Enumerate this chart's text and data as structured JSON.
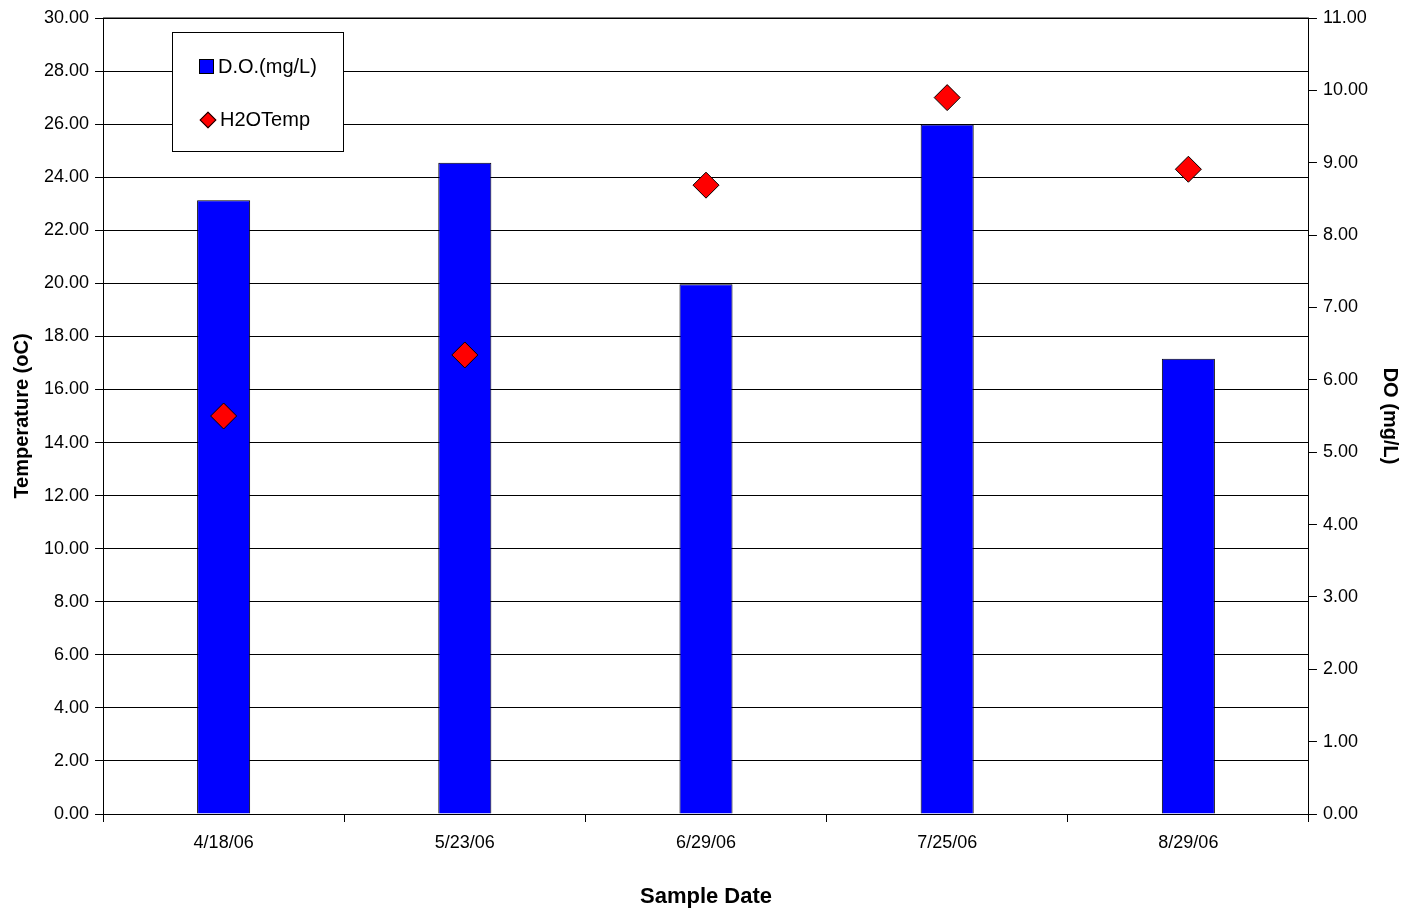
{
  "chart_data": {
    "type": "bar",
    "xlabel": "Sample Date",
    "ylabel": "Temperature (oC)",
    "y2label": "DO (mg/L)",
    "categories": [
      "4/18/06",
      "5/23/06",
      "6/29/06",
      "7/25/06",
      "8/29/06"
    ],
    "series": [
      {
        "name": "D.O.(mg/L)",
        "axis": "y2",
        "color": "#0000ff",
        "values": [
          8.48,
          9.0,
          7.32,
          9.53,
          6.29
        ]
      },
      {
        "name": "H2OTemp",
        "type": "scatter",
        "color": "#ff0000",
        "marker": "diamond",
        "values": [
          15.0,
          17.3,
          23.7,
          27.0,
          24.3
        ]
      }
    ],
    "ylim": [
      0,
      30
    ],
    "yticks": [
      {
        "value": 0,
        "label": "0.00"
      },
      {
        "value": 2,
        "label": "2.00"
      },
      {
        "value": 4,
        "label": "4.00"
      },
      {
        "value": 6,
        "label": "6.00"
      },
      {
        "value": 8,
        "label": "8.00"
      },
      {
        "value": 10,
        "label": "10.00"
      },
      {
        "value": 12,
        "label": "12.00"
      },
      {
        "value": 14,
        "label": "14.00"
      },
      {
        "value": 16,
        "label": "16.00"
      },
      {
        "value": 18,
        "label": "18.00"
      },
      {
        "value": 20,
        "label": "20.00"
      },
      {
        "value": 22,
        "label": "22.00"
      },
      {
        "value": 24,
        "label": "24.00"
      },
      {
        "value": 26,
        "label": "26.00"
      },
      {
        "value": 28,
        "label": "28.00"
      },
      {
        "value": 30,
        "label": "30.00"
      }
    ],
    "y2lim": [
      0,
      11
    ],
    "y2ticks": [
      {
        "value": 0,
        "label": "0.00"
      },
      {
        "value": 1,
        "label": "1.00"
      },
      {
        "value": 2,
        "label": "2.00"
      },
      {
        "value": 3,
        "label": "3.00"
      },
      {
        "value": 4,
        "label": "4.00"
      },
      {
        "value": 5,
        "label": "5.00"
      },
      {
        "value": 6,
        "label": "6.00"
      },
      {
        "value": 7,
        "label": "7.00"
      },
      {
        "value": 8,
        "label": "8.00"
      },
      {
        "value": 9,
        "label": "9.00"
      },
      {
        "value": 10,
        "label": "10.00"
      },
      {
        "value": 11,
        "label": "11.00"
      }
    ],
    "grid": "y",
    "legend": "top left"
  }
}
